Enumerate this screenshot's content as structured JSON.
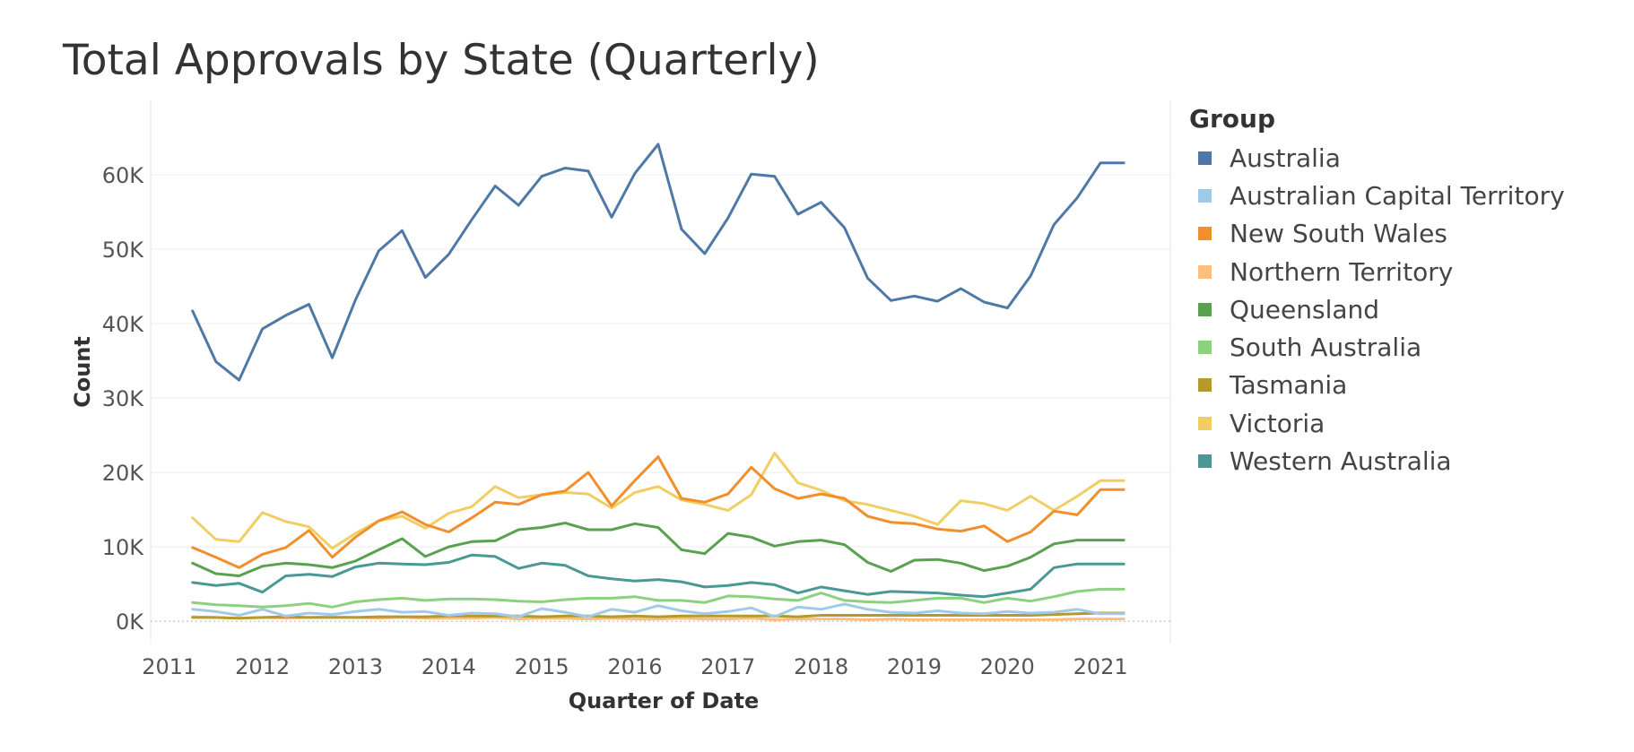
{
  "colors": {
    "Australia": "#4e79a7",
    "Australian Capital Territory": "#a0cbe8",
    "New South Wales": "#f28e2b",
    "Northern Territory": "#ffbe7d",
    "Queensland": "#59a14f",
    "South Australia": "#8cd17d",
    "Tasmania": "#b6992d",
    "Victoria": "#f1ce63",
    "Western Australia": "#499894"
  },
  "chart_data": {
    "type": "line",
    "title": "Total Approvals by State (Quarterly)",
    "xlabel": "Quarter of Date",
    "ylabel": "Count",
    "ylim": [
      -3000,
      70000
    ],
    "xlim": [
      2010.8,
      2021.75
    ],
    "y_ticks": [
      0,
      10000,
      20000,
      30000,
      40000,
      50000,
      60000
    ],
    "y_tick_labels": [
      "0K",
      "10K",
      "20K",
      "30K",
      "40K",
      "50K",
      "60K"
    ],
    "x_ticks": [
      2011,
      2012,
      2013,
      2014,
      2015,
      2016,
      2017,
      2018,
      2019,
      2020,
      2021
    ],
    "x_tick_labels": [
      "2011",
      "2012",
      "2013",
      "2014",
      "2015",
      "2016",
      "2017",
      "2018",
      "2019",
      "2020",
      "2021"
    ],
    "grid": true,
    "legend_title": "Group",
    "legend_position": "right",
    "x": [
      "2011 Q2",
      "2011 Q3",
      "2011 Q4",
      "2012 Q1",
      "2012 Q2",
      "2012 Q3",
      "2012 Q4",
      "2013 Q1",
      "2013 Q2",
      "2013 Q3",
      "2013 Q4",
      "2014 Q1",
      "2014 Q2",
      "2014 Q3",
      "2014 Q4",
      "2015 Q1",
      "2015 Q2",
      "2015 Q3",
      "2015 Q4",
      "2016 Q1",
      "2016 Q2",
      "2016 Q3",
      "2016 Q4",
      "2017 Q1",
      "2017 Q2",
      "2017 Q3",
      "2017 Q4",
      "2018 Q1",
      "2018 Q2",
      "2018 Q3",
      "2018 Q4",
      "2019 Q1",
      "2019 Q2",
      "2019 Q3",
      "2019 Q4",
      "2020 Q1",
      "2020 Q2",
      "2020 Q3",
      "2020 Q4",
      "2021 Q1",
      "2021 Q2"
    ],
    "series": [
      {
        "name": "Australia",
        "values": [
          41700,
          34900,
          32400,
          39300,
          41100,
          42600,
          35400,
          43200,
          49800,
          52500,
          46200,
          49300,
          54000,
          58500,
          55900,
          59800,
          60900,
          60500,
          54300,
          60200,
          64100,
          52700,
          49400,
          54200,
          60100,
          59800,
          54700,
          56300,
          52900,
          46100,
          43100,
          43700,
          43000,
          44700,
          42900,
          42100,
          46400,
          53300,
          56900,
          61600,
          61600
        ]
      },
      {
        "name": "Australian Capital Territory",
        "values": [
          1600,
          1300,
          800,
          1600,
          700,
          1100,
          900,
          1300,
          1600,
          1200,
          1300,
          800,
          1100,
          1000,
          600,
          1700,
          1200,
          600,
          1600,
          1200,
          2100,
          1400,
          1000,
          1300,
          1800,
          600,
          1900,
          1600,
          2300,
          1600,
          1200,
          1100,
          1400,
          1100,
          1000,
          1300,
          1100,
          1200,
          1600,
          1000,
          1000
        ]
      },
      {
        "name": "New South Wales",
        "values": [
          9900,
          8600,
          7200,
          9000,
          9900,
          12200,
          8600,
          11300,
          13500,
          14700,
          13000,
          12000,
          13900,
          16000,
          15700,
          17000,
          17500,
          20000,
          15500,
          18900,
          22100,
          16500,
          16000,
          17100,
          20700,
          17800,
          16500,
          17100,
          16500,
          14100,
          13300,
          13100,
          12400,
          12100,
          12800,
          10700,
          12000,
          14800,
          14300,
          17700,
          17700
        ]
      },
      {
        "name": "Northern Territory",
        "values": [
          600,
          500,
          400,
          500,
          400,
          500,
          600,
          500,
          400,
          500,
          400,
          400,
          400,
          500,
          300,
          400,
          400,
          300,
          400,
          300,
          300,
          400,
          300,
          300,
          400,
          200,
          300,
          300,
          300,
          200,
          300,
          200,
          200,
          200,
          200,
          200,
          200,
          200,
          300,
          300,
          300
        ]
      },
      {
        "name": "Queensland",
        "values": [
          7800,
          6400,
          6100,
          7400,
          7800,
          7600,
          7200,
          8100,
          9600,
          11100,
          8700,
          10000,
          10700,
          10800,
          12300,
          12600,
          13200,
          12300,
          12300,
          13100,
          12600,
          9600,
          9100,
          11800,
          11300,
          10100,
          10700,
          10900,
          10300,
          7900,
          6700,
          8200,
          8300,
          7800,
          6800,
          7400,
          8600,
          10400,
          10900,
          10900,
          10900
        ]
      },
      {
        "name": "South Australia",
        "values": [
          2500,
          2200,
          2100,
          1900,
          2100,
          2400,
          1900,
          2600,
          2900,
          3100,
          2800,
          3000,
          3000,
          2900,
          2700,
          2600,
          2900,
          3100,
          3100,
          3300,
          2800,
          2800,
          2500,
          3400,
          3300,
          3000,
          2800,
          3800,
          2800,
          2600,
          2500,
          2800,
          3100,
          3100,
          2500,
          3100,
          2700,
          3300,
          4000,
          4300,
          4300
        ]
      },
      {
        "name": "Tasmania",
        "values": [
          500,
          500,
          400,
          500,
          600,
          500,
          500,
          500,
          600,
          600,
          600,
          700,
          700,
          700,
          700,
          600,
          700,
          700,
          600,
          700,
          600,
          700,
          700,
          700,
          700,
          700,
          600,
          800,
          800,
          800,
          800,
          800,
          800,
          800,
          800,
          800,
          800,
          900,
          1000,
          1100,
          1100
        ]
      },
      {
        "name": "Victoria",
        "values": [
          13900,
          11000,
          10700,
          14600,
          13400,
          12700,
          9800,
          11800,
          13500,
          14100,
          12500,
          14500,
          15400,
          18100,
          16600,
          17000,
          17300,
          17100,
          15200,
          17300,
          18100,
          16300,
          15700,
          14900,
          17000,
          22600,
          18600,
          17600,
          16200,
          15700,
          14900,
          14100,
          13000,
          16200,
          15800,
          14900,
          16800,
          14900,
          16800,
          18900,
          18900
        ]
      },
      {
        "name": "Western Australia",
        "values": [
          5200,
          4800,
          5100,
          3900,
          6100,
          6300,
          6000,
          7300,
          7800,
          7700,
          7600,
          7900,
          8900,
          8700,
          7100,
          7800,
          7500,
          6100,
          5700,
          5400,
          5600,
          5300,
          4600,
          4800,
          5200,
          4900,
          3800,
          4600,
          4100,
          3600,
          4000,
          3900,
          3800,
          3500,
          3300,
          3800,
          4300,
          7200,
          7700,
          7700,
          7700
        ]
      }
    ]
  }
}
